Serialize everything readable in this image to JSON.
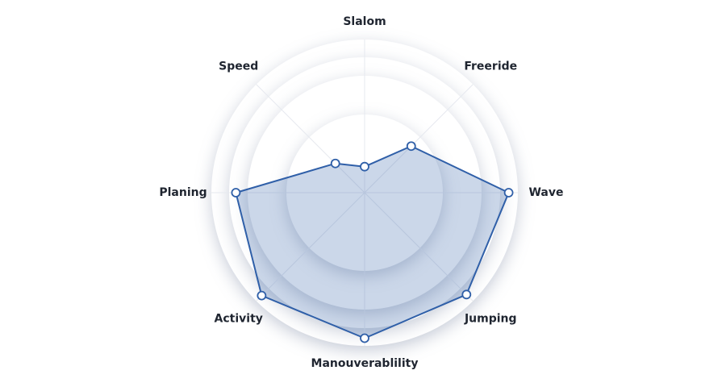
{
  "chart_data": {
    "type": "radar",
    "categories": [
      "Slalom",
      "Freeride",
      "Wave",
      "Jumping",
      "Manouverablility",
      "Activity",
      "Planing",
      "Speed"
    ],
    "values": [
      17,
      43,
      94,
      94,
      95,
      95,
      84,
      27
    ],
    "color": "#2f5fa8",
    "rlim": [
      0,
      100
    ]
  }
}
